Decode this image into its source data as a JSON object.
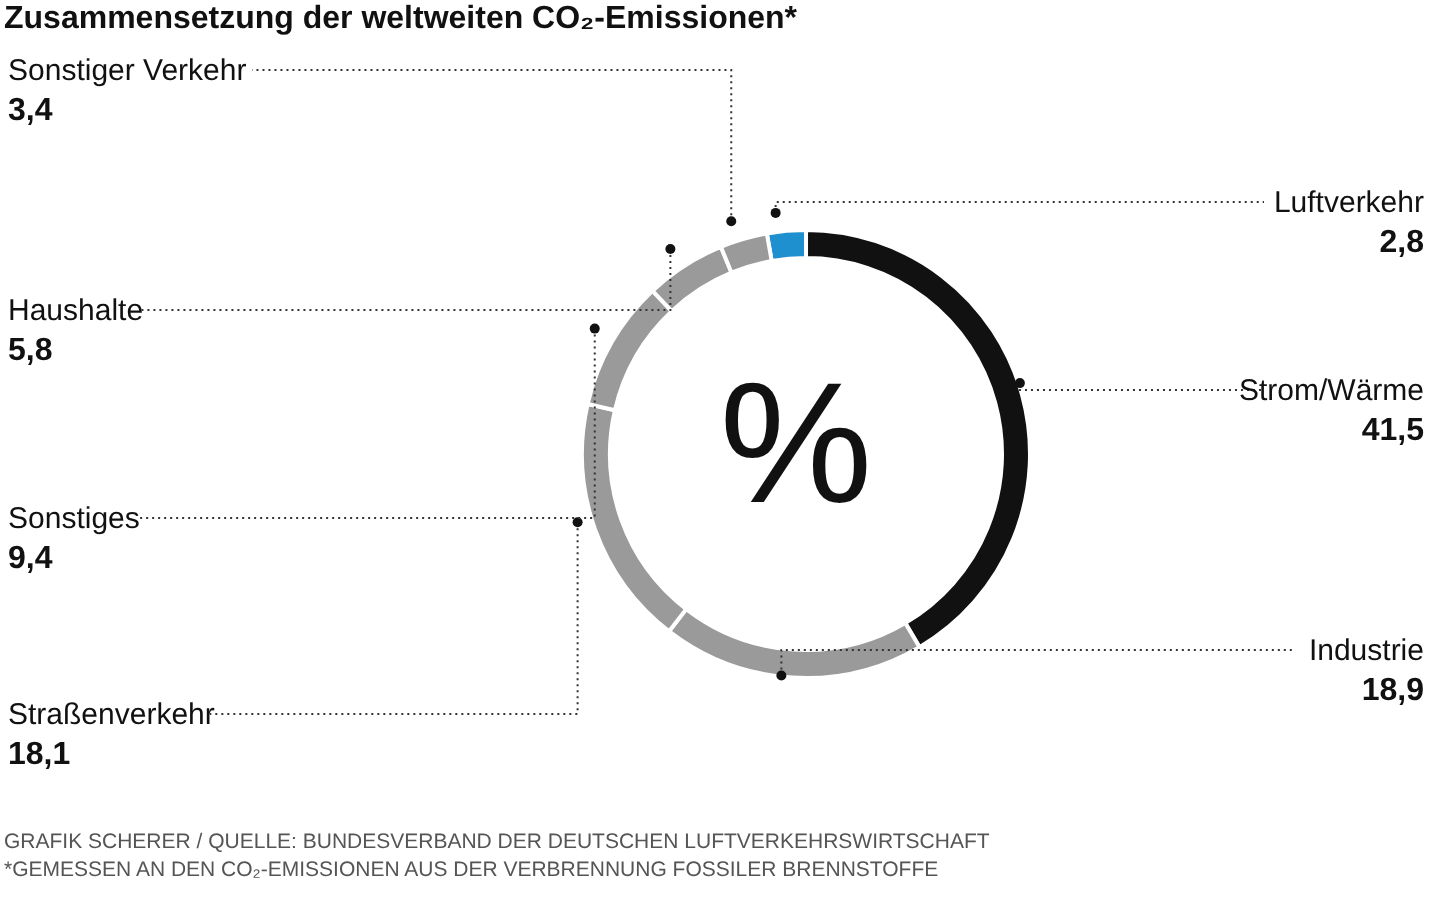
{
  "chart_data": {
    "type": "donut",
    "title": "Zusammensetzung der weltweiten CO₂-Emissionen*",
    "categories": [
      "Luftverkehr",
      "Strom/Wärme",
      "Industrie",
      "Straßenverkehr",
      "Sonstiges",
      "Haushalte",
      "Sonstiger Verkehr"
    ],
    "values": [
      2.8,
      41.5,
      18.9,
      18.1,
      9.4,
      5.8,
      3.4
    ],
    "value_labels": [
      "2,8",
      "41,5",
      "18,9",
      "18,1",
      "9,4",
      "5,8",
      "3,4"
    ],
    "colors": [
      "#1e8fcf",
      "#111111",
      "#9a9a9a",
      "#9a9a9a",
      "#9a9a9a",
      "#9a9a9a",
      "#9a9a9a"
    ],
    "annotations": [
      "%",
      "GRAFIK SCHERER / QUELLE: BUNDESVERBAND DER DEUTSCHEN LUFTVERKEHRSWIRTSCHAFT",
      "*GEMESSEN AN DEN CO₂-EMISSIONEN AUS DER VERBRENNUNG FOSSILER BRENNSTOFFE"
    ],
    "legend": false
  }
}
